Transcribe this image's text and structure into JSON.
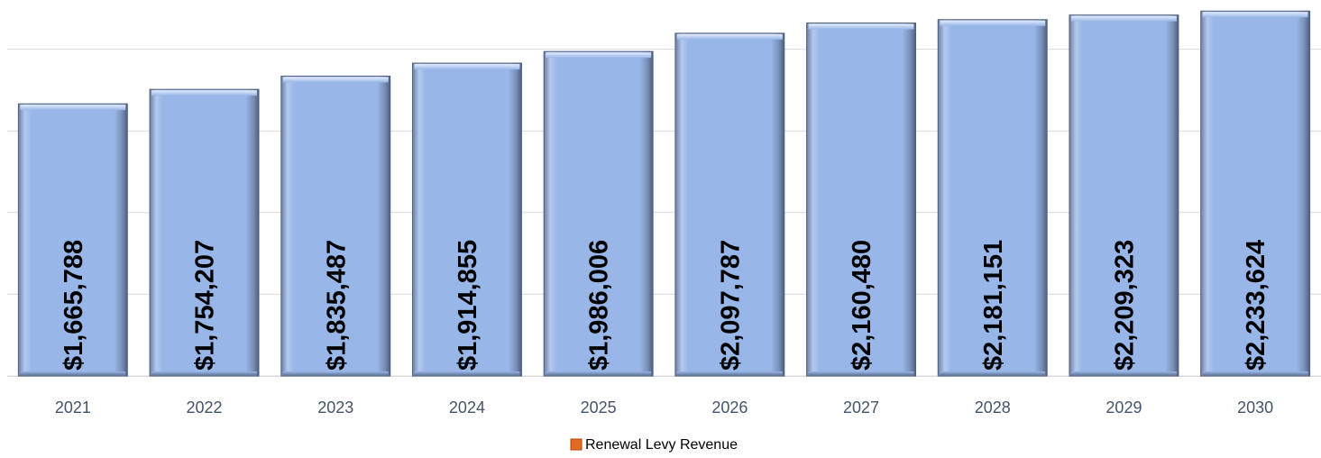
{
  "chart_data": {
    "type": "bar",
    "categories": [
      "2021",
      "2022",
      "2023",
      "2024",
      "2025",
      "2026",
      "2027",
      "2028",
      "2029",
      "2030"
    ],
    "series": [
      {
        "name": "Renewal Levy Revenue",
        "values": [
          1665788,
          1754207,
          1835487,
          1914855,
          1986006,
          2097787,
          2160480,
          2181151,
          2209323,
          2233624
        ],
        "labels": [
          "$1,665,788",
          "$1,754,207",
          "$1,835,487",
          "$1,914,855",
          "$1,986,006",
          "$2,097,787",
          "$2,160,480",
          "$2,181,151",
          "$2,209,323",
          "$2,233,624"
        ]
      }
    ],
    "ylim": [
      0,
      2500000
    ],
    "grid": true,
    "legend_position": "bottom-center",
    "colors": {
      "bar_fill": "#98b6e8",
      "bar_light": "#c6d7f4",
      "bar_dark": "#4f5f7d",
      "legend_swatch": "#e26b23",
      "gridline": "#d9d9d9",
      "tick_text": "#44546a"
    }
  }
}
